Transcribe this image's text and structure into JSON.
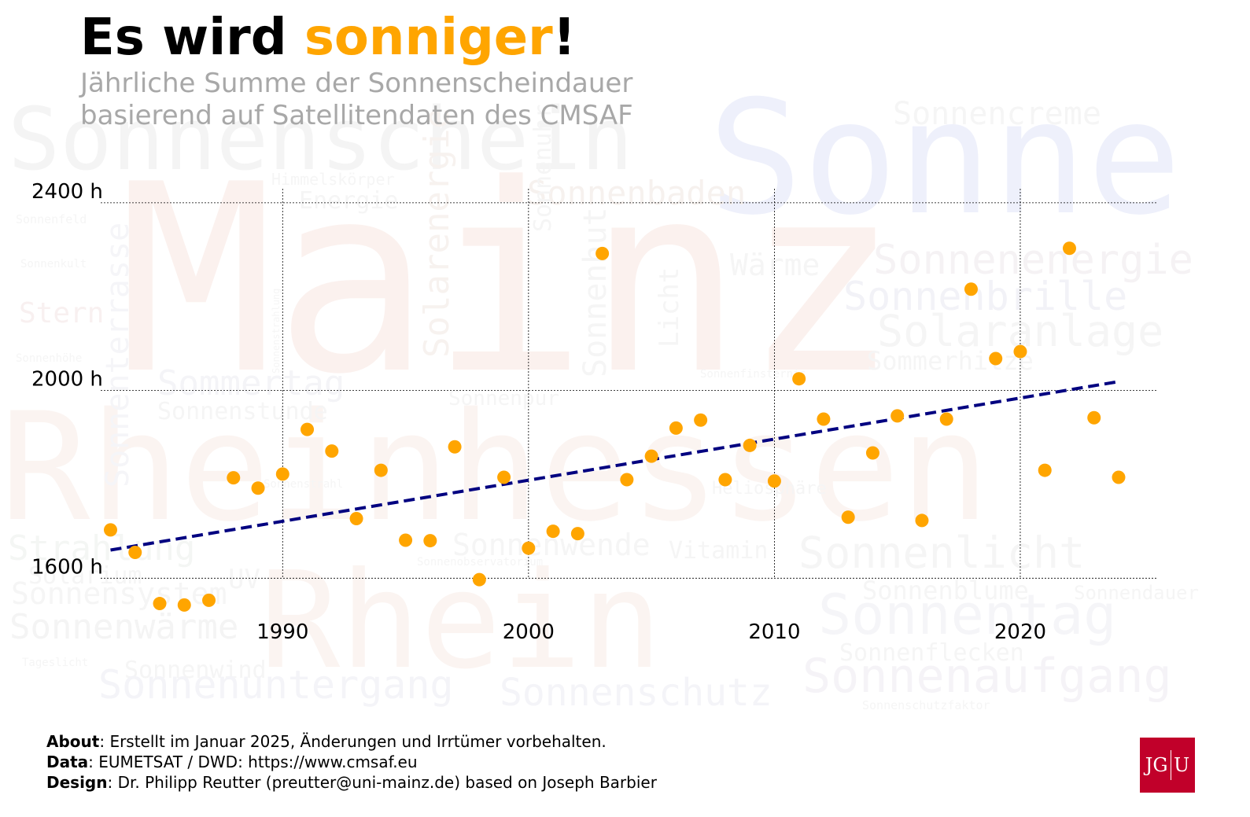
{
  "header": {
    "title_part1": "Es wird ",
    "title_highlight": "sonniger",
    "title_part2": "!",
    "subtitle": "Jährliche Summe der Sonnenscheindauer\nbasierend auf Satellitendaten des CMSAF"
  },
  "chart_data": {
    "type": "scatter",
    "x_range": [
      1982.6,
      2025.6
    ],
    "y_range": [
      1500,
      2430
    ],
    "x_ticks": [
      1990,
      2000,
      2010,
      2020
    ],
    "x_tick_labels": [
      "1990",
      "2000",
      "2010",
      "2020"
    ],
    "y_ticks": [
      1600,
      2000,
      2400
    ],
    "y_tick_labels": [
      "1600 h",
      "2000 h",
      "2400 h"
    ],
    "grid": true,
    "series": [
      {
        "type": "scatter",
        "color": "#FFA500",
        "x": [
          1983,
          1984,
          1985,
          1986,
          1987,
          1988,
          1989,
          1990,
          1991,
          1992,
          1993,
          1994,
          1995,
          1996,
          1997,
          1998,
          1999,
          2000,
          2001,
          2002,
          2003,
          2004,
          2005,
          2006,
          2007,
          2008,
          2009,
          2010,
          2011,
          2012,
          2013,
          2014,
          2015,
          2016,
          2017,
          2018,
          2019,
          2020,
          2021,
          2022,
          2023,
          2024
        ],
        "y": [
          1703,
          1655,
          1546,
          1543,
          1553,
          1814,
          1792,
          1822,
          1917,
          1871,
          1727,
          1830,
          1681,
          1680,
          1880,
          1597,
          1815,
          1664,
          1700,
          1695,
          2292,
          1810,
          1860,
          1920,
          1937,
          1810,
          1883,
          1807,
          2025,
          1939,
          1730,
          1867,
          1946,
          1723,
          1939,
          2216,
          2068,
          2083,
          1830,
          2303,
          1942,
          1815
        ]
      },
      {
        "type": "line",
        "style": "dashed",
        "color": "#000080",
        "x": [
          1983,
          2024
        ],
        "y": [
          1660,
          2019
        ]
      }
    ]
  },
  "wordcloud": [
    {
      "text": "Sonne",
      "color": "#EEF0FB"
    },
    {
      "text": "Mainz",
      "color": "#FBF1EE"
    },
    {
      "text": "Rheinhessen",
      "color": "#FBF4F1"
    },
    {
      "text": "Rhein",
      "color": "#FBF4F1"
    },
    {
      "text": "Sonnenschein",
      "color": "#F4F4F4"
    },
    {
      "text": "Sonnencreme",
      "color": "#F5F5F5"
    },
    {
      "text": "Sonnenbaden",
      "color": "#F6F1EE"
    },
    {
      "text": "Sonnenenergie",
      "color": "#F5F2F4"
    },
    {
      "text": "Sonnenbrille",
      "color": "#F2F2F7"
    },
    {
      "text": "Solaranlage",
      "color": "#F5F5F5"
    },
    {
      "text": "Sommerhitze",
      "color": "#F5F5F5"
    },
    {
      "text": "Solarenergie",
      "color": "#F7F2EF"
    },
    {
      "text": "Sonnenterrasse",
      "color": "#F5F5F8"
    },
    {
      "text": "Sonnenhut",
      "color": "#F5F5F5"
    },
    {
      "text": "Licht",
      "color": "#F5F5F5"
    },
    {
      "text": "Wärme",
      "color": "#F5F5F5"
    },
    {
      "text": "Sommertag",
      "color": "#F4F4F7"
    },
    {
      "text": "Sonnenstunde",
      "color": "#F5F5F5"
    },
    {
      "text": "Sonnenuhr",
      "color": "#F5F5F5"
    },
    {
      "text": "Strahlung",
      "color": "#F4F6F4"
    },
    {
      "text": "Solarium",
      "color": "#F5F5F5"
    },
    {
      "text": "Sonnensystem",
      "color": "#F5F5F5"
    },
    {
      "text": "Sonnenwärme",
      "color": "#F4F4F4"
    },
    {
      "text": "Sonnenwind",
      "color": "#F5F5F5"
    },
    {
      "text": "Sonnenuntergang",
      "color": "#F4F4F8"
    },
    {
      "text": "Sonnenschutz",
      "color": "#F4F4F8"
    },
    {
      "text": "Sonnenlicht",
      "color": "#F5F5F5"
    },
    {
      "text": "Sonnenblume",
      "color": "#F5F5F5"
    },
    {
      "text": "Sonnenaufgang",
      "color": "#F5F3F7"
    },
    {
      "text": "Sonnenflecken",
      "color": "#F5F5F5"
    },
    {
      "text": "Sonnentag",
      "color": "#F5F5F8"
    },
    {
      "text": "Stern",
      "color": "#F8F0F0"
    },
    {
      "text": "Himmelskörper",
      "color": "#F5F5F5"
    },
    {
      "text": "Energie",
      "color": "#F5F5F5"
    },
    {
      "text": "Sonnenstrahlung",
      "color": "#F5F5F5"
    },
    {
      "text": "Sonnenfeld",
      "color": "#F5F5F5"
    },
    {
      "text": "Sonnenkult",
      "color": "#F5F5F5"
    },
    {
      "text": "Sonnenhöhe",
      "color": "#F5F5F5"
    },
    {
      "text": "Sonnenschutzfaktor",
      "color": "#F5F5F5"
    },
    {
      "text": "Sonnendauer",
      "color": "#F5F5F5"
    },
    {
      "text": "Vitamin",
      "color": "#F5F5F5"
    },
    {
      "text": "Tageslicht",
      "color": "#F5F5F5"
    },
    {
      "text": "Sonnenwende",
      "color": "#F5F5F5"
    },
    {
      "text": "Sonnenobservatorium",
      "color": "#F5F5F5"
    },
    {
      "text": "Heliosphäre",
      "color": "#F5F5F5"
    },
    {
      "text": "Sonnenpur",
      "color": "#F5F5F5"
    },
    {
      "text": "UV",
      "color": "#F5F5F5"
    },
    {
      "text": "Sonnenstrahl",
      "color": "#F5F5F5"
    },
    {
      "text": "Sonnenfinsternis",
      "color": "#F5F5F5"
    }
  ],
  "footer": {
    "about_label": "About",
    "about_text": ": Erstellt im Januar 2025, Änderungen und Irrtümer vorbehalten.",
    "data_label": "Data",
    "data_text": ": EUMETSAT / DWD: https://www.cmsaf.eu",
    "design_label": "Design",
    "design_text": ": Dr. Philipp Reutter (preutter@uni-mainz.de) based on Joseph Barbier"
  },
  "logo": {
    "left": "JG",
    "right": "U",
    "color": "#c1002a"
  }
}
